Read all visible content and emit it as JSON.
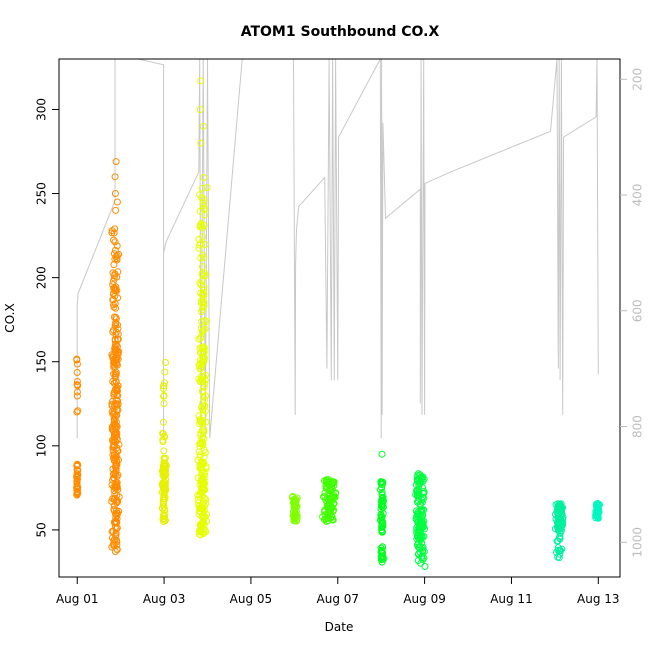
{
  "chart_data": {
    "type": "scatter",
    "title": "ATOM1 Southbound CO.X",
    "xlabel": "Date",
    "ylabel": "CO.X",
    "y2label": "",
    "x_ticks": [
      {
        "day": 1,
        "label": "Aug 01"
      },
      {
        "day": 3,
        "label": "Aug 03"
      },
      {
        "day": 5,
        "label": "Aug 05"
      },
      {
        "day": 7,
        "label": "Aug 07"
      },
      {
        "day": 9,
        "label": "Aug 09"
      },
      {
        "day": 11,
        "label": "Aug 11"
      },
      {
        "day": 13,
        "label": "Aug 13"
      }
    ],
    "xlim": [
      0.58,
      13.5
    ],
    "ylim": [
      22,
      330
    ],
    "y_ticks": [
      50,
      100,
      150,
      200,
      250,
      300
    ],
    "y2lim": [
      1060,
      165
    ],
    "y2_ticks": [
      200,
      400,
      600,
      800,
      1000
    ],
    "y2_color": "#bdbdbd",
    "grid": false,
    "clusters": [
      {
        "day": 1.0,
        "spread": 0.02,
        "segments": [
          [
            70,
            90,
            40
          ],
          [
            120,
            155,
            12
          ]
        ],
        "outliers": [],
        "color": "#ff8c00"
      },
      {
        "day": 1.88,
        "spread": 0.1,
        "segments": [
          [
            37,
            80,
            60
          ],
          [
            75,
            160,
            160
          ],
          [
            160,
            230,
            60
          ]
        ],
        "outliers": [
          240,
          250,
          260,
          269,
          245
        ],
        "color": "#ff8c00"
      },
      {
        "day": 3.0,
        "spread": 0.05,
        "segments": [
          [
            55,
            90,
            70
          ],
          [
            90,
            150,
            20
          ]
        ],
        "outliers": [],
        "color": "#e6f000"
      },
      {
        "day": 3.88,
        "spread": 0.12,
        "segments": [
          [
            47,
            90,
            100
          ],
          [
            90,
            160,
            80
          ],
          [
            160,
            260,
            60
          ]
        ],
        "outliers": [
          280,
          300,
          317,
          290
        ],
        "color": "#e6ff00"
      },
      {
        "day": 6.02,
        "spread": 0.07,
        "segments": [
          [
            55,
            70,
            40
          ]
        ],
        "outliers": [],
        "color": "#80ff00"
      },
      {
        "day": 6.82,
        "spread": 0.18,
        "segments": [
          [
            55,
            80,
            90
          ]
        ],
        "outliers": [],
        "color": "#40ff00"
      },
      {
        "day": 8.02,
        "spread": 0.05,
        "segments": [
          [
            30,
            40,
            20
          ],
          [
            45,
            80,
            50
          ]
        ],
        "outliers": [
          95
        ],
        "color": "#00ff20"
      },
      {
        "day": 8.9,
        "spread": 0.12,
        "segments": [
          [
            28,
            60,
            60
          ],
          [
            50,
            85,
            80
          ]
        ],
        "outliers": [],
        "color": "#00ff40"
      },
      {
        "day": 12.1,
        "spread": 0.1,
        "segments": [
          [
            33,
            50,
            20
          ],
          [
            50,
            66,
            70
          ]
        ],
        "outliers": [],
        "color": "#00f0a0"
      },
      {
        "day": 12.98,
        "spread": 0.05,
        "segments": [
          [
            56,
            66,
            40
          ]
        ],
        "outliers": [],
        "color": "#00f8c0"
      }
    ],
    "secondary_line": {
      "color": "#c8c8c8",
      "points": [
        [
          1.0,
          820
        ],
        [
          1.0,
          590
        ],
        [
          1.02,
          570
        ],
        [
          1.87,
          410
        ],
        [
          1.87,
          165
        ],
        [
          1.9,
          165
        ],
        [
          2.4,
          165
        ],
        [
          2.99,
          175
        ],
        [
          2.99,
          820
        ],
        [
          2.99,
          500
        ],
        [
          3.05,
          480
        ],
        [
          3.8,
          360
        ],
        [
          3.82,
          165
        ],
        [
          3.85,
          820
        ],
        [
          3.9,
          165
        ],
        [
          3.95,
          820
        ],
        [
          4.0,
          165
        ],
        [
          4.05,
          820
        ],
        [
          4.8,
          165
        ],
        [
          5.6,
          165
        ],
        [
          5.98,
          165
        ],
        [
          6.02,
          780
        ],
        [
          6.03,
          520
        ],
        [
          6.05,
          460
        ],
        [
          6.1,
          420
        ],
        [
          6.7,
          370
        ],
        [
          6.75,
          700
        ],
        [
          6.8,
          165
        ],
        [
          6.85,
          720
        ],
        [
          6.88,
          165
        ],
        [
          6.92,
          720
        ],
        [
          6.95,
          165
        ],
        [
          7.0,
          720
        ],
        [
          7.02,
          300
        ],
        [
          7.98,
          165
        ],
        [
          8.0,
          820
        ],
        [
          8.01,
          165
        ],
        [
          8.02,
          780
        ],
        [
          8.04,
          275
        ],
        [
          8.06,
          330
        ],
        [
          8.1,
          440
        ],
        [
          8.9,
          390
        ],
        [
          8.9,
          760
        ],
        [
          8.92,
          165
        ],
        [
          8.94,
          780
        ],
        [
          8.98,
          165
        ],
        [
          9.0,
          780
        ],
        [
          9.01,
          380
        ],
        [
          9.6,
          360
        ],
        [
          11.9,
          290
        ],
        [
          12.05,
          165
        ],
        [
          12.08,
          700
        ],
        [
          12.1,
          165
        ],
        [
          12.12,
          720
        ],
        [
          12.15,
          165
        ],
        [
          12.18,
          780
        ],
        [
          12.2,
          300
        ],
        [
          12.95,
          265
        ],
        [
          12.97,
          165
        ],
        [
          13.0,
          710
        ]
      ]
    }
  }
}
